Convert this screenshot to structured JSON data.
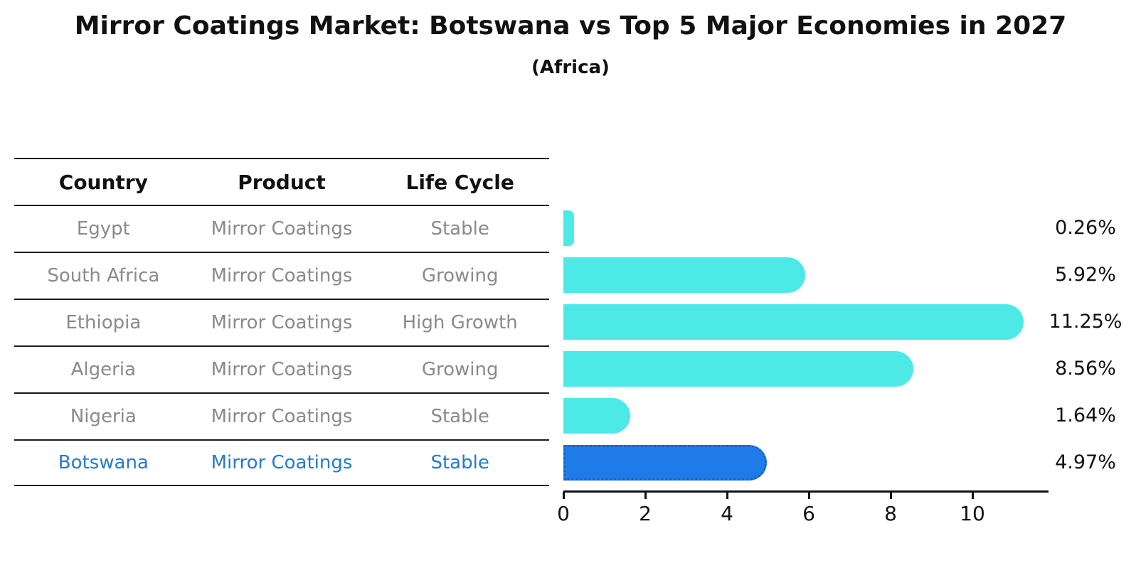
{
  "title": "Mirror Coatings Market: Botswana vs Top 5 Major Economies in 2027",
  "subtitle": "(Africa)",
  "table": {
    "columns": [
      "Country",
      "Product",
      "Life Cycle"
    ],
    "rows": [
      {
        "country": "Egypt",
        "product": "Mirror Coatings",
        "life_cycle": "Stable",
        "highlighted": false
      },
      {
        "country": "South Africa",
        "product": "Mirror Coatings",
        "life_cycle": "Growing",
        "highlighted": false
      },
      {
        "country": "Ethiopia",
        "product": "Mirror Coatings",
        "life_cycle": "High Growth",
        "highlighted": false
      },
      {
        "country": "Algeria",
        "product": "Mirror Coatings",
        "life_cycle": "Growing",
        "highlighted": false
      },
      {
        "country": "Nigeria",
        "product": "Mirror Coatings",
        "life_cycle": "Stable",
        "highlighted": false
      },
      {
        "country": "Botswana",
        "product": "Mirror Coatings",
        "life_cycle": "Stable",
        "highlighted": true
      }
    ]
  },
  "chart_data": {
    "type": "bar",
    "orientation": "horizontal",
    "title": "Mirror Coatings Market: Botswana vs Top 5 Major Economies in 2027",
    "subtitle": "(Africa)",
    "categories": [
      "Egypt",
      "South Africa",
      "Ethiopia",
      "Algeria",
      "Nigeria",
      "Botswana"
    ],
    "values": [
      0.26,
      5.92,
      11.25,
      8.56,
      1.64,
      4.97
    ],
    "value_labels": [
      "0.26%",
      "5.92%",
      "11.25%",
      "8.56%",
      "1.64%",
      "4.97%"
    ],
    "x_ticks": [
      0,
      2,
      4,
      6,
      8,
      10
    ],
    "xlim": [
      0,
      11.85
    ],
    "xlabel": "",
    "ylabel": "",
    "grid": false,
    "legend": false,
    "bar_color": "#4DE9E6",
    "highlight_index": 5,
    "highlight_color": "#1F7BE8",
    "highlight_border_color": "#1565C8",
    "label_color": "#111111",
    "row_text_color": "#8a8a8a",
    "highlight_text_color": "#2879CB"
  }
}
